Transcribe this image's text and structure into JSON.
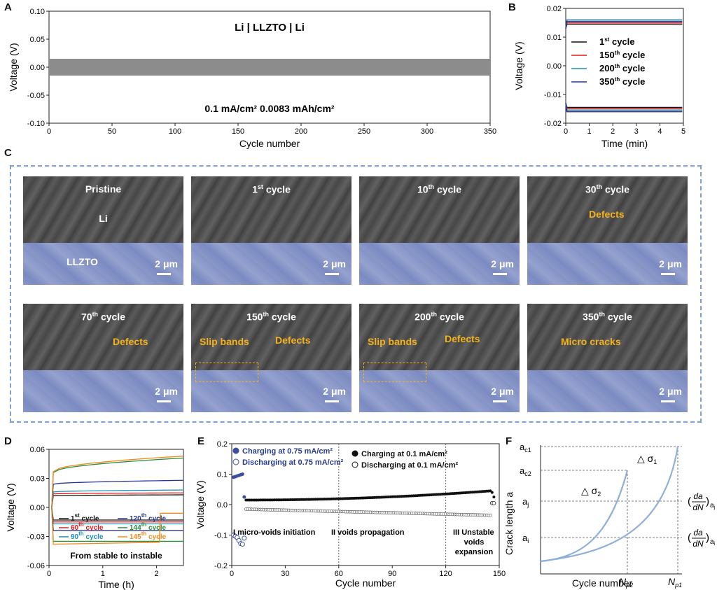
{
  "panels": {
    "A": "A",
    "B": "B",
    "C": "C",
    "D": "D",
    "E": "E",
    "F": "F"
  },
  "colors": {
    "gray_band": "#8c8c8c",
    "cycle1": "#111111",
    "cycle150": "#e31a1c",
    "cycle200": "#1f8fb4",
    "cycle350": "#27368e",
    "orange": "#f5b21b",
    "curve": "#8fb0d8"
  },
  "chart_data": [
    {
      "id": "A",
      "type": "area",
      "title": "Li | LLZTO | Li",
      "annotation": "0.1 mA/cm² 0.0083 mAh/cm²",
      "xlabel": "Cycle number",
      "ylabel": "Voltage (V)",
      "xlim": [
        0,
        350
      ],
      "ylim": [
        -0.1,
        0.1
      ],
      "xticks": [
        "0",
        "50",
        "100",
        "150",
        "200",
        "250",
        "300",
        "350"
      ],
      "yticks": [
        "-0.10",
        "-0.05",
        "0.00",
        "0.05",
        "0.10"
      ],
      "band": {
        "x": [
          0,
          350
        ],
        "upper": 0.015,
        "lower": -0.015
      }
    },
    {
      "id": "B",
      "type": "line",
      "xlabel": "Time (min)",
      "ylabel": "Voltage (V)",
      "xlim": [
        0,
        5
      ],
      "ylim": [
        -0.02,
        0.02
      ],
      "xticks": [
        "0",
        "1",
        "2",
        "3",
        "4",
        "5"
      ],
      "yticks": [
        "-0.02",
        "-0.01",
        "0.00",
        "0.01",
        "0.02"
      ],
      "legend": [
        {
          "base": "1",
          "sup": "st",
          "rest": " cycle"
        },
        {
          "base": "150",
          "sup": "th",
          "rest": " cycle"
        },
        {
          "base": "200",
          "sup": "th",
          "rest": " cycle"
        },
        {
          "base": "350",
          "sup": "th",
          "rest": " cycle"
        }
      ],
      "series": [
        {
          "name": "1st cycle",
          "upper": 0.0145,
          "lower": -0.0145
        },
        {
          "name": "150th cycle",
          "upper": 0.015,
          "lower": -0.015
        },
        {
          "name": "200th cycle",
          "upper": 0.016,
          "lower": -0.0155
        },
        {
          "name": "350th cycle",
          "upper": 0.0155,
          "lower": -0.016
        }
      ]
    },
    {
      "id": "D",
      "type": "line",
      "xlabel": "Time (h)",
      "ylabel": "Voltage (V)",
      "xlim": [
        0,
        2.5
      ],
      "ylim": [
        -0.06,
        0.06
      ],
      "xticks": [
        "0",
        "1",
        "2"
      ],
      "yticks": [
        "-0.06",
        "-0.03",
        "0.00",
        "0.03",
        "0.06"
      ],
      "annotation": "From stable to instable",
      "legend": [
        {
          "base": "1",
          "sup": "st",
          "rest": " cycle"
        },
        {
          "base": "120",
          "sup": "th",
          "rest": " cycle"
        },
        {
          "base": "60",
          "sup": "th",
          "rest": " cycle"
        },
        {
          "base": "144",
          "sup": "th",
          "rest": " cycle"
        },
        {
          "base": "90",
          "sup": "th",
          "rest": " cycle"
        },
        {
          "base": "145",
          "sup": "th",
          "rest": " cycle"
        }
      ],
      "series": [
        {
          "name": "1st cycle",
          "upper_start": 0.012,
          "upper_end": 0.013,
          "lower": -0.013
        },
        {
          "name": "60th cycle",
          "upper_start": 0.014,
          "upper_end": 0.015,
          "lower": -0.015
        },
        {
          "name": "90th cycle",
          "upper_start": 0.016,
          "upper_end": 0.018,
          "lower": -0.017
        },
        {
          "name": "120th cycle",
          "upper_start": 0.024,
          "upper_end": 0.028,
          "lower": -0.024
        },
        {
          "name": "144th cycle",
          "upper_start": 0.036,
          "upper_end": 0.051,
          "lower": -0.035
        },
        {
          "name": "145th cycle",
          "upper_start": 0.037,
          "upper_end": 0.053,
          "lower": -0.038
        }
      ]
    },
    {
      "id": "E",
      "type": "scatter",
      "xlabel": "Cycle number",
      "ylabel": "Voltage (V)",
      "xlim": [
        0,
        150
      ],
      "ylim": [
        -0.2,
        0.2
      ],
      "xticks": [
        "0",
        "30",
        "60",
        "90",
        "120",
        "150"
      ],
      "yticks": [
        "-0.2",
        "-0.1",
        "0.0",
        "0.1",
        "0.2"
      ],
      "legend": [
        "Charging at 0.75 mA/cm²",
        "Discharging at 0.75 mA/cm²",
        "Charging at 0.1 mA/cm²",
        "Discharging at 0.1 mA/cm²"
      ],
      "dividers": [
        60,
        120
      ],
      "stages": [
        "I micro-voids initiation",
        "II voids propagation",
        "III Unstable",
        "voids",
        "expansion"
      ],
      "high_rate_charge": [
        [
          1,
          0.09
        ],
        [
          2,
          0.092
        ],
        [
          3,
          0.094
        ],
        [
          4,
          0.096
        ],
        [
          5,
          0.098
        ],
        [
          6,
          0.1
        ],
        [
          7,
          0.025
        ]
      ],
      "high_rate_discharge": [
        [
          1,
          -0.1
        ],
        [
          2,
          -0.104
        ],
        [
          3,
          -0.108
        ],
        [
          4,
          -0.118
        ],
        [
          5,
          -0.128
        ],
        [
          6,
          -0.13
        ],
        [
          7,
          -0.11
        ]
      ],
      "low_rate_charge": {
        "x_start": 8,
        "x_end": 145,
        "y_start": 0.015,
        "y_end": 0.045,
        "spike": [
          [
            146,
            0.04
          ],
          [
            147,
            0.025
          ]
        ]
      },
      "low_rate_discharge": {
        "x_start": 8,
        "x_end": 145,
        "y_start": -0.015,
        "y_end": -0.035,
        "spike": [
          [
            146,
            0.005
          ],
          [
            147,
            0.005
          ]
        ]
      }
    },
    {
      "id": "F",
      "type": "line",
      "xlabel": "Cycle number",
      "ylabel": "Crack length a",
      "labels_y": {
        "ac1": [
          "a",
          "c1"
        ],
        "ac2": [
          "a",
          "c2"
        ],
        "aj": [
          "a",
          "j"
        ],
        "ai": [
          "a",
          "i"
        ]
      },
      "labels_x": {
        "np2": [
          "N",
          "p2"
        ],
        "np1": [
          "N",
          "p1"
        ]
      },
      "deltas": [
        {
          "sym": "△ σ",
          "sub": "1"
        },
        {
          "sym": "△ σ",
          "sub": "2"
        }
      ],
      "rates": [
        {
          "num": "da",
          "den": "dN",
          "sub": "a",
          "subsub": "j"
        },
        {
          "num": "da",
          "den": "dN",
          "sub": "a",
          "subsub": "i"
        }
      ]
    }
  ],
  "panelC": {
    "images": [
      {
        "label": "Pristine",
        "sup": "",
        "rest": "",
        "extra": [
          "Li",
          "LLZTO"
        ],
        "scale": "2 μm"
      },
      {
        "label": "1",
        "sup": "st",
        "rest": " cycle",
        "scale": "2 μm"
      },
      {
        "label": "10",
        "sup": "th",
        "rest": " cycle",
        "scale": "2 μm"
      },
      {
        "label": "30",
        "sup": "th",
        "rest": " cycle",
        "scale": "2 μm",
        "annotations": [
          "Defects"
        ]
      },
      {
        "label": "70",
        "sup": "th",
        "rest": " cycle",
        "scale": "2 μm",
        "annotations": [
          "Defects"
        ]
      },
      {
        "label": "150",
        "sup": "th",
        "rest": " cycle",
        "scale": "2 μm",
        "annotations": [
          "Slip bands",
          "Defects"
        ]
      },
      {
        "label": "200",
        "sup": "th",
        "rest": " cycle",
        "scale": "2 μm",
        "annotations": [
          "Slip bands",
          "Defects"
        ]
      },
      {
        "label": "350",
        "sup": "th",
        "rest": " cycle",
        "scale": "2 μm",
        "annotations": [
          "Micro cracks"
        ]
      }
    ]
  }
}
